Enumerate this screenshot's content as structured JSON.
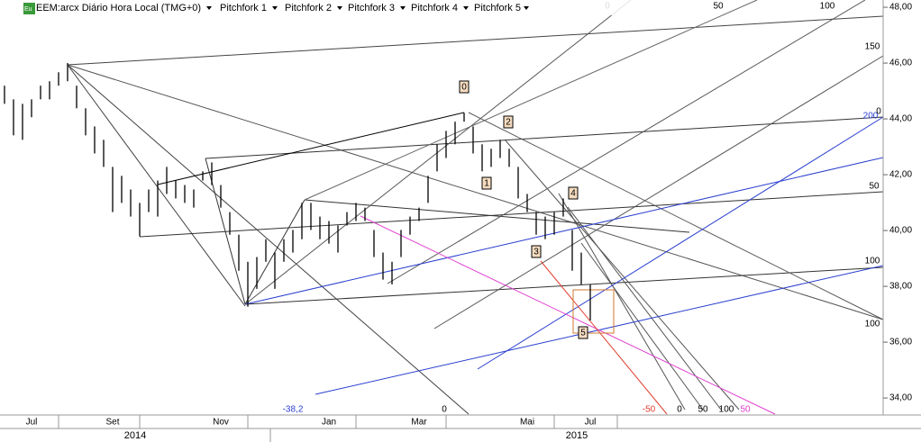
{
  "toolbar": {
    "icon": "Eu",
    "symbol": "EEM:arcx Diário Hora Local (TMG+0)",
    "menus": [
      "Pitchfork 1",
      "Pitchfork 2",
      "Pitchfork 3",
      "Pitchfork 4",
      "Pitchfork 5"
    ]
  },
  "chart_data": {
    "type": "ohlc",
    "categories": [
      null,
      null,
      null,
      "Jul",
      null,
      null,
      null,
      null,
      null,
      null,
      null,
      null,
      "Set",
      null,
      null,
      null,
      null,
      null,
      null,
      null,
      null,
      null,
      null,
      null,
      "Nov",
      null,
      null,
      null,
      null,
      null,
      null,
      null,
      null,
      null,
      null,
      null,
      "Jan",
      null,
      null,
      null,
      null,
      null,
      null,
      null,
      null,
      null,
      "Mar",
      null,
      null,
      null,
      null,
      null,
      null,
      null,
      null,
      null,
      null,
      null,
      "Mai",
      null,
      null,
      null,
      null,
      null,
      null,
      "Jul"
    ],
    "high": [
      45.19,
      44.7,
      44.54,
      44.7,
      45.19,
      45.35,
      45.67,
      46.0,
      45.19,
      44.38,
      43.73,
      43.25,
      42.28,
      41.96,
      41.47,
      40.99,
      41.47,
      41.79,
      42.28,
      41.79,
      41.63,
      41.47,
      42.12,
      42.44,
      41.63,
      40.66,
      39.85,
      38.88,
      39.05,
      39.69,
      39.21,
      39.69,
      40.02,
      40.99,
      40.99,
      40.5,
      40.34,
      40.18,
      40.66,
      40.99,
      40.82,
      40.02,
      39.21,
      38.88,
      40.02,
      40.5,
      40.82,
      41.96,
      43.09,
      43.57,
      43.9,
      44.22,
      43.73,
      43.09,
      42.93,
      43.25,
      42.93,
      42.28,
      41.31,
      40.66,
      40.5,
      40.66,
      41.15,
      40.02,
      39.21,
      38.07
    ],
    "low": [
      44.54,
      43.41,
      43.25,
      44.06,
      44.7,
      44.7,
      45.19,
      45.35,
      44.38,
      43.41,
      42.76,
      42.28,
      40.66,
      40.99,
      40.5,
      39.79,
      40.66,
      40.5,
      41.31,
      41.15,
      40.99,
      40.82,
      41.79,
      41.63,
      40.82,
      39.85,
      38.56,
      37.27,
      37.91,
      38.88,
      37.91,
      38.88,
      39.21,
      39.69,
      40.02,
      39.69,
      39.53,
      39.21,
      40.18,
      40.34,
      40.34,
      39.05,
      38.24,
      38.07,
      39.05,
      39.85,
      40.34,
      40.99,
      42.12,
      42.6,
      43.09,
      43.9,
      42.76,
      42.12,
      42.28,
      42.6,
      42.28,
      41.15,
      40.66,
      39.85,
      39.69,
      39.85,
      40.5,
      38.56,
      38.07,
      36.78
    ],
    "color": "#000000",
    "ylim": [
      33.39,
      48.26
    ],
    "yticks": [
      {
        "value": 34,
        "label": "34,00"
      },
      {
        "value": 36,
        "label": "36,00"
      },
      {
        "value": 38,
        "label": "38,00"
      },
      {
        "value": 40,
        "label": "40,00"
      },
      {
        "value": 42,
        "label": "42,00"
      },
      {
        "value": 44,
        "label": "44,00"
      },
      {
        "value": 46,
        "label": "46,00"
      },
      {
        "value": 48,
        "label": "48,00"
      }
    ],
    "year_labels": [
      "2014",
      "2015"
    ],
    "fork_labels": [
      "0",
      "50",
      "100",
      "150",
      "200",
      "0",
      "50",
      "100",
      "100",
      "-38,2",
      "0",
      "-50",
      "0",
      "50",
      "100",
      "50"
    ],
    "wave_labels": [
      "0",
      "2",
      "1",
      "4",
      "3",
      "5"
    ]
  }
}
